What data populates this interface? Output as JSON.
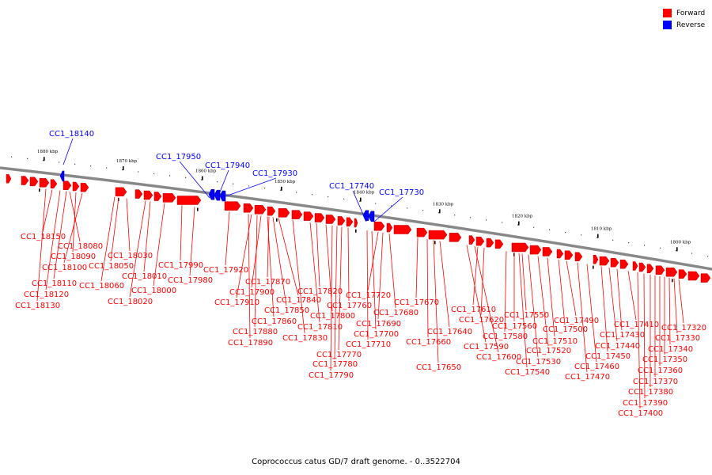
{
  "legend": {
    "forward": {
      "label": "Forward",
      "color": "#ff0000"
    },
    "reverse": {
      "label": "Reverse",
      "color": "#0000ff"
    }
  },
  "caption": "Coprococcus catus GD/7 draft genome. - 0..3522704",
  "scale_labels": [
    "1880 kbp",
    "1870 kbp",
    "1860 kbp",
    "1850 kbp",
    "1840 kbp",
    "1830 kbp",
    "1820 kbp",
    "1810 kbp",
    "1800 kbp"
  ],
  "reverse_genes": [
    "CC1_18140",
    "CC1_17950",
    "CC1_17940",
    "CC1_17930",
    "CC1_17740",
    "CC1_17730"
  ],
  "forward_genes": [
    "CC1_18150",
    "CC1_18080",
    "CC1_18090",
    "CC1_18100",
    "CC1_18110",
    "CC1_18120",
    "CC1_18130",
    "CC1_18030",
    "CC1_18050",
    "CC1_18060",
    "CC1_18010",
    "CC1_18000",
    "CC1_18020",
    "CC1_17990",
    "CC1_17980",
    "CC1_17920",
    "CC1_17870",
    "CC1_17900",
    "CC1_17910",
    "CC1_17840",
    "CC1_17850",
    "CC1_17860",
    "CC1_17880",
    "CC1_17890",
    "CC1_17820",
    "CC1_17810",
    "CC1_17830",
    "CC1_17800",
    "CC1_17760",
    "CC1_17770",
    "CC1_17780",
    "CC1_17790",
    "CC1_17720",
    "CC1_17690",
    "CC1_17680",
    "CC1_17700",
    "CC1_17710",
    "CC1_17670",
    "CC1_17660",
    "CC1_17650",
    "CC1_17640",
    "CC1_17610",
    "CC1_17620",
    "CC1_17590",
    "CC1_17600",
    "CC1_17550",
    "CC1_17560",
    "CC1_17580",
    "CC1_17520",
    "CC1_17530",
    "CC1_17540",
    "CC1_17490",
    "CC1_17500",
    "CC1_17510",
    "CC1_17460",
    "CC1_17470",
    "CC1_17410",
    "CC1_17430",
    "CC1_17440",
    "CC1_17450",
    "CC1_17320",
    "CC1_17330",
    "CC1_17340",
    "CC1_17350",
    "CC1_17360",
    "CC1_17370",
    "CC1_17380",
    "CC1_17390",
    "CC1_17400"
  ]
}
